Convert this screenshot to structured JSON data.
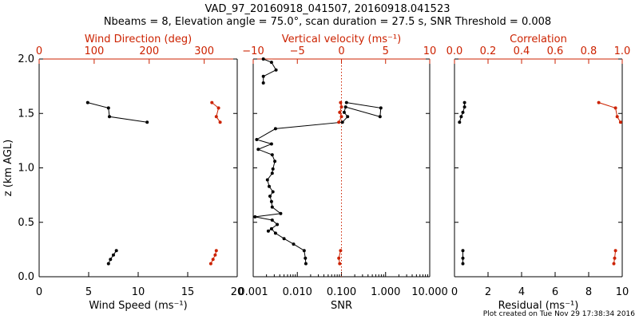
{
  "title_line1": "VAD_97_20160918_041507, 20160918.041523",
  "title_line2": "Nbeams = 8, Elevation angle = 75.0°, scan duration = 27.5 s, SNR Threshold = 0.008",
  "footer": "Plot created on Tue Nov 29 17:38:34 2016",
  "colors": {
    "black": "#000000",
    "red": "#cc2200"
  },
  "chart_data": [
    {
      "type": "scatter",
      "name": "wind-panel",
      "ylabel": "z (km AGL)",
      "ylim": [
        0,
        2.0
      ],
      "yticks": [
        0,
        0.5,
        1.0,
        1.5,
        2.0
      ],
      "yticklabels": [
        "0.0",
        "0.5",
        "1.0",
        "1.5",
        "2.0"
      ],
      "bottom_axis": {
        "label": "Wind Speed (ms⁻¹)",
        "range": [
          0,
          20
        ],
        "scale": "linear",
        "ticks": [
          0,
          5,
          10,
          15,
          20
        ],
        "ticklabels": [
          "0",
          "5",
          "10",
          "15",
          "20"
        ]
      },
      "top_axis": {
        "label": "Wind Direction (deg)",
        "range": [
          0,
          360
        ],
        "scale": "linear",
        "ticks": [
          0,
          100,
          200,
          300
        ],
        "ticklabels": [
          "0",
          "100",
          "200",
          "300"
        ]
      },
      "series": [
        {
          "name": "Wind Speed",
          "axis": "bottom",
          "color": "black",
          "line": true,
          "points": [
            [
              7.8,
              0.24
            ],
            [
              7.5,
              0.2
            ],
            [
              7.2,
              0.16
            ],
            [
              7.0,
              0.12
            ],
            [
              null,
              null
            ],
            [
              4.9,
              1.6
            ],
            [
              7.0,
              1.55
            ],
            [
              7.1,
              1.47
            ],
            [
              10.9,
              1.42
            ]
          ]
        },
        {
          "name": "Wind Direction",
          "axis": "top",
          "color": "red",
          "line": true,
          "points": [
            [
              322,
              0.24
            ],
            [
              320,
              0.2
            ],
            [
              316,
              0.16
            ],
            [
              312,
              0.12
            ],
            [
              null,
              null
            ],
            [
              314,
              1.6
            ],
            [
              326,
              1.55
            ],
            [
              322,
              1.47
            ],
            [
              329,
              1.42
            ]
          ]
        }
      ]
    },
    {
      "type": "scatter",
      "name": "snr-panel",
      "ylim": [
        0,
        2.0
      ],
      "yticks": [
        0,
        0.5,
        1.0,
        1.5,
        2.0
      ],
      "bottom_axis": {
        "label": "SNR",
        "range": [
          0.001,
          10
        ],
        "scale": "log",
        "ticks": [
          0.001,
          0.01,
          0.1,
          1,
          10
        ],
        "ticklabels": [
          "0.001",
          "0.010",
          "0.100",
          "1.000",
          "10.000"
        ]
      },
      "top_axis": {
        "label": "Vertical velocity (ms⁻¹)",
        "range": [
          -10,
          10
        ],
        "scale": "linear",
        "ticks": [
          -10,
          -5,
          0,
          5,
          10
        ],
        "ticklabels": [
          "−10",
          "−5",
          "0",
          "5",
          "10"
        ]
      },
      "reference_line": {
        "axis": "top",
        "value": 0,
        "style": "dotted",
        "color": "red"
      },
      "series": [
        {
          "name": "SNR",
          "axis": "bottom",
          "color": "black",
          "line": true,
          "points": [
            [
              0.0156,
              0.12
            ],
            [
              0.0152,
              0.17
            ],
            [
              0.0143,
              0.24
            ],
            [
              0.0082,
              0.3
            ],
            [
              0.005,
              0.35
            ],
            [
              0.0032,
              0.4
            ],
            [
              0.0026,
              0.44
            ],
            [
              0.0022,
              0.42
            ],
            [
              0.0035,
              0.48
            ],
            [
              0.0027,
              0.52
            ],
            [
              0.0011,
              0.55
            ],
            [
              0.0042,
              0.58
            ],
            [
              0.0027,
              0.64
            ],
            [
              0.0026,
              0.69
            ],
            [
              0.0024,
              0.74
            ],
            [
              0.0028,
              0.78
            ],
            [
              0.0023,
              0.83
            ],
            [
              0.0021,
              0.89
            ],
            [
              0.0027,
              0.95
            ],
            [
              0.0028,
              0.99
            ],
            [
              0.0031,
              1.06
            ],
            [
              0.0027,
              1.12
            ],
            [
              0.0013,
              1.17
            ],
            [
              0.0026,
              1.22
            ],
            [
              0.0012,
              1.26
            ],
            [
              0.0032,
              1.36
            ],
            [
              0.105,
              1.42
            ],
            [
              0.138,
              1.47
            ],
            [
              0.115,
              1.51
            ],
            [
              0.124,
              1.56
            ],
            [
              0.75,
              1.47
            ],
            [
              0.78,
              1.55
            ],
            [
              0.13,
              1.6
            ],
            [
              null,
              null
            ],
            [
              0.0017,
              1.78
            ],
            [
              0.0017,
              1.84
            ],
            [
              0.0033,
              1.9
            ],
            [
              0.0026,
              1.97
            ],
            [
              0.0017,
              2.0
            ]
          ]
        },
        {
          "name": "Vertical velocity",
          "axis": "top",
          "color": "red",
          "line": true,
          "points": [
            [
              -0.2,
              0.12
            ],
            [
              -0.3,
              0.17
            ],
            [
              -0.1,
              0.24
            ],
            [
              null,
              null
            ],
            [
              -0.3,
              1.42
            ],
            [
              0.0,
              1.47
            ],
            [
              -0.2,
              1.51
            ],
            [
              0.0,
              1.56
            ],
            [
              -0.1,
              1.6
            ]
          ]
        }
      ]
    },
    {
      "type": "scatter",
      "name": "residual-panel",
      "ylim": [
        0,
        2.0
      ],
      "yticks": [
        0,
        0.5,
        1.0,
        1.5,
        2.0
      ],
      "bottom_axis": {
        "label": "Residual (ms⁻¹)",
        "range": [
          0,
          10
        ],
        "scale": "linear",
        "ticks": [
          0,
          2,
          4,
          6,
          8,
          10
        ],
        "ticklabels": [
          "0",
          "2",
          "4",
          "6",
          "8",
          "10"
        ]
      },
      "top_axis": {
        "label": "Correlation",
        "range": [
          0,
          1
        ],
        "scale": "linear",
        "ticks": [
          0,
          0.2,
          0.4,
          0.6,
          0.8,
          1.0
        ],
        "ticklabels": [
          "0.0",
          "0.2",
          "0.4",
          "0.6",
          "0.8",
          "1.0"
        ]
      },
      "series": [
        {
          "name": "Residual",
          "axis": "bottom",
          "color": "black",
          "line": true,
          "points": [
            [
              0.5,
              0.12
            ],
            [
              0.5,
              0.17
            ],
            [
              0.5,
              0.24
            ],
            [
              null,
              null
            ],
            [
              0.3,
              1.42
            ],
            [
              0.4,
              1.47
            ],
            [
              0.5,
              1.51
            ],
            [
              0.6,
              1.56
            ],
            [
              0.6,
              1.6
            ]
          ]
        },
        {
          "name": "Correlation",
          "axis": "top",
          "color": "red",
          "line": true,
          "points": [
            [
              0.95,
              0.12
            ],
            [
              0.955,
              0.17
            ],
            [
              0.96,
              0.24
            ],
            [
              null,
              null
            ],
            [
              0.99,
              1.42
            ],
            [
              0.97,
              1.47
            ],
            [
              0.96,
              1.55
            ],
            [
              0.86,
              1.6
            ]
          ]
        }
      ]
    }
  ]
}
